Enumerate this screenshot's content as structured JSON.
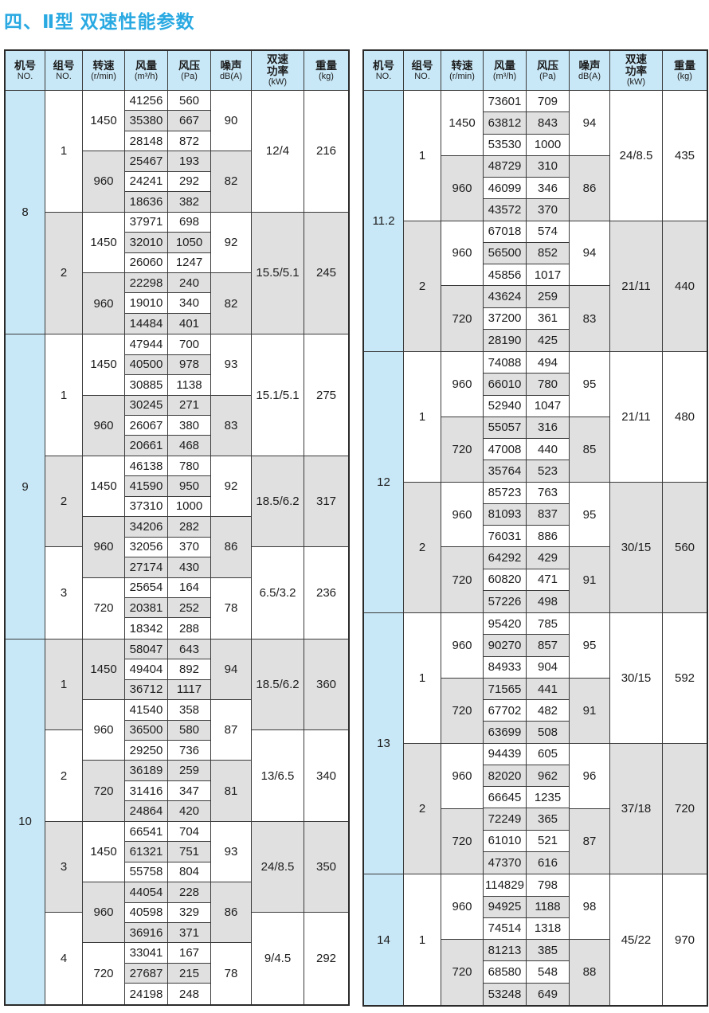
{
  "title": "四、Ⅱ型 双速性能参数",
  "colors": {
    "title": "#29a9e2",
    "header_bg": "#c9e8f7",
    "machine_col_bg": "#c9e8f7",
    "row_alt_bg": "#e0e0e0",
    "border": "#3a3a3a"
  },
  "headers": [
    {
      "lines": [
        "机号",
        "NO."
      ]
    },
    {
      "lines": [
        "组号",
        "NO."
      ]
    },
    {
      "lines": [
        "转速",
        "(r/min)"
      ]
    },
    {
      "lines": [
        "风量",
        "(m³/h)"
      ]
    },
    {
      "lines": [
        "风压",
        "(Pa)"
      ]
    },
    {
      "lines": [
        "噪声",
        "dB(A)"
      ]
    },
    {
      "lines": [
        "双速",
        "功率",
        "(kW)"
      ]
    },
    {
      "lines": [
        "重量",
        "(kg)"
      ]
    }
  ],
  "tables": [
    {
      "machines": [
        {
          "no": "8",
          "groups": [
            {
              "no": "1",
              "span": 6,
              "power": "12/4",
              "weight": "216",
              "blocks": [
                {
                  "speed": "1450",
                  "noise": "90",
                  "rows": [
                    [
                      "41256",
                      "560"
                    ],
                    [
                      "35380",
                      "667"
                    ],
                    [
                      "28148",
                      "872"
                    ]
                  ]
                },
                {
                  "speed": "960",
                  "noise": "82",
                  "rows": [
                    [
                      "25467",
                      "193"
                    ],
                    [
                      "24241",
                      "292"
                    ],
                    [
                      "18636",
                      "382"
                    ]
                  ]
                }
              ]
            },
            {
              "no": "2",
              "span": 6,
              "power": "15.5/5.1",
              "weight": "245",
              "blocks": [
                {
                  "speed": "1450",
                  "noise": "92",
                  "rows": [
                    [
                      "37971",
                      "698"
                    ],
                    [
                      "32010",
                      "1050"
                    ],
                    [
                      "26060",
                      "1247"
                    ]
                  ]
                },
                {
                  "speed": "960",
                  "noise": "82",
                  "rows": [
                    [
                      "22298",
                      "240"
                    ],
                    [
                      "19010",
                      "340"
                    ],
                    [
                      "14484",
                      "401"
                    ]
                  ]
                }
              ]
            }
          ]
        },
        {
          "no": "9",
          "groups": [
            {
              "no": "1",
              "span": 6,
              "power": "15.1/5.1",
              "weight": "275",
              "blocks": [
                {
                  "speed": "1450",
                  "noise": "93",
                  "rows": [
                    [
                      "47944",
                      "700"
                    ],
                    [
                      "40500",
                      "978"
                    ],
                    [
                      "30885",
                      "1138"
                    ]
                  ]
                },
                {
                  "speed": "960",
                  "noise": "83",
                  "rows": [
                    [
                      "30245",
                      "271"
                    ],
                    [
                      "26067",
                      "380"
                    ],
                    [
                      "20661",
                      "468"
                    ]
                  ]
                }
              ]
            },
            {
              "no": "2",
              "span": 4.5,
              "power": "18.5/6.2",
              "weight": "317",
              "blocks": [
                {
                  "speed": "1450",
                  "noise": "92",
                  "rows": [
                    [
                      "46138",
                      "780"
                    ],
                    [
                      "41590",
                      "950"
                    ],
                    [
                      "37310",
                      "1000"
                    ]
                  ]
                },
                {
                  "speed": "960",
                  "noise": "86",
                  "rows": [
                    [
                      "34206",
                      "282"
                    ],
                    [
                      "32056",
                      "370"
                    ],
                    [
                      "27174",
                      "430"
                    ]
                  ]
                }
              ]
            },
            {
              "no": "3",
              "span": 4.5,
              "power": "6.5/3.2",
              "weight": "236",
              "blocks": [
                {
                  "speed": "720",
                  "noise": "78",
                  "rows": [
                    [
                      "25654",
                      "164"
                    ],
                    [
                      "20381",
                      "252"
                    ],
                    [
                      "18342",
                      "288"
                    ]
                  ]
                }
              ]
            }
          ]
        },
        {
          "no": "10",
          "groups": [
            {
              "no": "1",
              "span": 4.5,
              "power": "18.5/6.2",
              "weight": "360",
              "blocks": [
                {
                  "speed": "1450",
                  "noise": "94",
                  "rows": [
                    [
                      "58047",
                      "643"
                    ],
                    [
                      "49404",
                      "892"
                    ],
                    [
                      "36712",
                      "1117"
                    ]
                  ]
                },
                {
                  "speed": "960",
                  "noise": "87",
                  "rows": [
                    [
                      "41540",
                      "358"
                    ],
                    [
                      "36500",
                      "580"
                    ],
                    [
                      "29250",
                      "736"
                    ]
                  ]
                }
              ]
            },
            {
              "no": "2",
              "span": 4.5,
              "power": "13/6.5",
              "weight": "340",
              "blocks": [
                {
                  "speed": "720",
                  "noise": "81",
                  "rows": [
                    [
                      "36189",
                      "259"
                    ],
                    [
                      "31416",
                      "347"
                    ],
                    [
                      "24864",
                      "420"
                    ]
                  ]
                }
              ]
            },
            {
              "no": "3",
              "span": 4.5,
              "power": "24/8.5",
              "weight": "350",
              "blocks": [
                {
                  "speed": "1450",
                  "noise": "93",
                  "rows": [
                    [
                      "66541",
                      "704"
                    ],
                    [
                      "61321",
                      "751"
                    ],
                    [
                      "55758",
                      "804"
                    ]
                  ]
                },
                {
                  "speed": "960",
                  "noise": "86",
                  "rows": [
                    [
                      "44054",
                      "228"
                    ],
                    [
                      "40598",
                      "329"
                    ],
                    [
                      "36916",
                      "371"
                    ]
                  ]
                }
              ]
            },
            {
              "no": "4",
              "span": 4.5,
              "power": "9/4.5",
              "weight": "292",
              "blocks": [
                {
                  "speed": "720",
                  "noise": "78",
                  "rows": [
                    [
                      "33041",
                      "167"
                    ],
                    [
                      "27687",
                      "215"
                    ],
                    [
                      "24198",
                      "248"
                    ]
                  ]
                }
              ]
            }
          ]
        }
      ]
    },
    {
      "machines": [
        {
          "no": "11.2",
          "groups": [
            {
              "no": "1",
              "span": 6,
              "power": "24/8.5",
              "weight": "435",
              "blocks": [
                {
                  "speed": "1450",
                  "noise": "94",
                  "rows": [
                    [
                      "73601",
                      "709"
                    ],
                    [
                      "63812",
                      "843"
                    ],
                    [
                      "53530",
                      "1000"
                    ]
                  ]
                },
                {
                  "speed": "960",
                  "noise": "86",
                  "rows": [
                    [
                      "48729",
                      "310"
                    ],
                    [
                      "46099",
                      "346"
                    ],
                    [
                      "43572",
                      "370"
                    ]
                  ]
                }
              ]
            },
            {
              "no": "2",
              "span": 6,
              "power": "21/11",
              "weight": "440",
              "blocks": [
                {
                  "speed": "960",
                  "noise": "94",
                  "rows": [
                    [
                      "67018",
                      "574"
                    ],
                    [
                      "56500",
                      "852"
                    ],
                    [
                      "45856",
                      "1017"
                    ]
                  ]
                },
                {
                  "speed": "720",
                  "noise": "83",
                  "rows": [
                    [
                      "43624",
                      "259"
                    ],
                    [
                      "37200",
                      "361"
                    ],
                    [
                      "28190",
                      "425"
                    ]
                  ]
                }
              ]
            }
          ]
        },
        {
          "no": "12",
          "groups": [
            {
              "no": "1",
              "span": 6,
              "power": "21/11",
              "weight": "480",
              "blocks": [
                {
                  "speed": "960",
                  "noise": "95",
                  "rows": [
                    [
                      "74088",
                      "494"
                    ],
                    [
                      "66010",
                      "780"
                    ],
                    [
                      "52940",
                      "1047"
                    ]
                  ]
                },
                {
                  "speed": "720",
                  "noise": "85",
                  "rows": [
                    [
                      "55057",
                      "316"
                    ],
                    [
                      "47008",
                      "440"
                    ],
                    [
                      "35764",
                      "523"
                    ]
                  ]
                }
              ]
            },
            {
              "no": "2",
              "span": 6,
              "power": "30/15",
              "weight": "560",
              "blocks": [
                {
                  "speed": "960",
                  "noise": "95",
                  "rows": [
                    [
                      "85723",
                      "763"
                    ],
                    [
                      "81093",
                      "837"
                    ],
                    [
                      "76031",
                      "886"
                    ]
                  ]
                },
                {
                  "speed": "720",
                  "noise": "91",
                  "rows": [
                    [
                      "64292",
                      "429"
                    ],
                    [
                      "60820",
                      "471"
                    ],
                    [
                      "57226",
                      "498"
                    ]
                  ]
                }
              ]
            }
          ]
        },
        {
          "no": "13",
          "groups": [
            {
              "no": "1",
              "span": 6,
              "power": "30/15",
              "weight": "592",
              "blocks": [
                {
                  "speed": "960",
                  "noise": "95",
                  "rows": [
                    [
                      "95420",
                      "785"
                    ],
                    [
                      "90270",
                      "857"
                    ],
                    [
                      "84933",
                      "904"
                    ]
                  ]
                },
                {
                  "speed": "720",
                  "noise": "91",
                  "rows": [
                    [
                      "71565",
                      "441"
                    ],
                    [
                      "67702",
                      "482"
                    ],
                    [
                      "63699",
                      "508"
                    ]
                  ]
                }
              ]
            },
            {
              "no": "2",
              "span": 6,
              "power": "37/18",
              "weight": "720",
              "blocks": [
                {
                  "speed": "960",
                  "noise": "96",
                  "rows": [
                    [
                      "94439",
                      "605"
                    ],
                    [
                      "82020",
                      "962"
                    ],
                    [
                      "66645",
                      "1235"
                    ]
                  ]
                },
                {
                  "speed": "720",
                  "noise": "87",
                  "rows": [
                    [
                      "72249",
                      "365"
                    ],
                    [
                      "61010",
                      "521"
                    ],
                    [
                      "47370",
                      "616"
                    ]
                  ]
                }
              ]
            }
          ]
        },
        {
          "no": "14",
          "groups": [
            {
              "no": "1",
              "span": 6,
              "power": "45/22",
              "weight": "970",
              "blocks": [
                {
                  "speed": "960",
                  "noise": "98",
                  "rows": [
                    [
                      "114829",
                      "798"
                    ],
                    [
                      "94925",
                      "1188"
                    ],
                    [
                      "74514",
                      "1318"
                    ]
                  ]
                },
                {
                  "speed": "720",
                  "noise": "88",
                  "rows": [
                    [
                      "81213",
                      "385"
                    ],
                    [
                      "68580",
                      "548"
                    ],
                    [
                      "53248",
                      "649"
                    ]
                  ]
                }
              ]
            }
          ]
        }
      ]
    }
  ]
}
